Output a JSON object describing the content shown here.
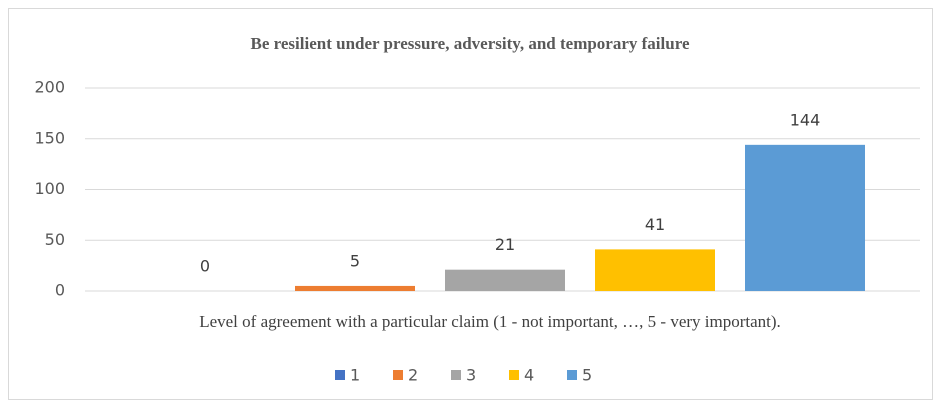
{
  "chart_data": {
    "type": "bar",
    "title": "Be resilient under pressure, adversity, and temporary failure",
    "categories": [
      "Level of agreement with  a  particular claim (1 - not important, …, 5 - very important)."
    ],
    "series": [
      {
        "name": "1",
        "color": "#4472c4",
        "values": [
          0
        ]
      },
      {
        "name": "2",
        "color": "#ed7d31",
        "values": [
          5
        ]
      },
      {
        "name": "3",
        "color": "#a5a5a5",
        "values": [
          21
        ]
      },
      {
        "name": "4",
        "color": "#ffc000",
        "values": [
          41
        ]
      },
      {
        "name": "5",
        "color": "#5b9bd5",
        "values": [
          144
        ]
      }
    ],
    "ylim": [
      0,
      200
    ],
    "yticks": [
      0,
      50,
      100,
      150,
      200
    ],
    "grid": true,
    "legend": "bottom"
  }
}
